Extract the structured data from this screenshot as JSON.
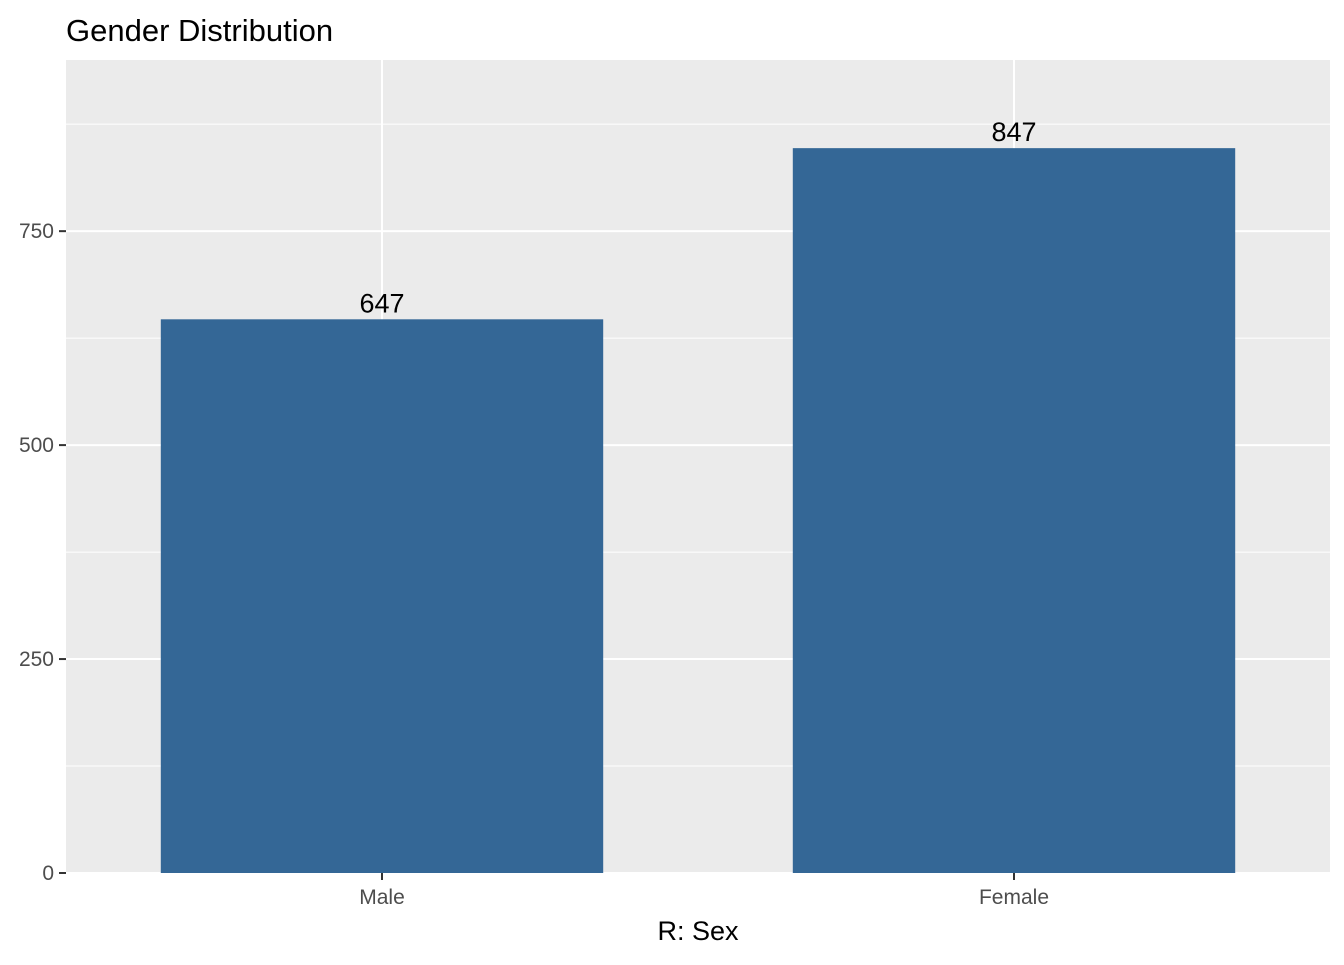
{
  "chart_data": {
    "type": "bar",
    "title": "Gender Distribution",
    "xlabel": "R: Sex",
    "ylabel": "",
    "categories": [
      "Male",
      "Female"
    ],
    "values": [
      647,
      847
    ],
    "data_labels": [
      "647",
      "847"
    ],
    "ylim": [
      0,
      950
    ],
    "y_ticks": [
      0,
      250,
      500,
      750
    ],
    "y_tick_labels": [
      "0",
      "250",
      "500",
      "750"
    ],
    "y_minor_ticks": [
      125,
      375,
      625,
      875
    ],
    "grid": true,
    "legend": "none",
    "colors": {
      "bar": "#346796",
      "panel": "#EBEBEB",
      "gridline": "#FFFFFF",
      "tick_text": "#4D4D4D",
      "title_text": "#000000"
    }
  }
}
